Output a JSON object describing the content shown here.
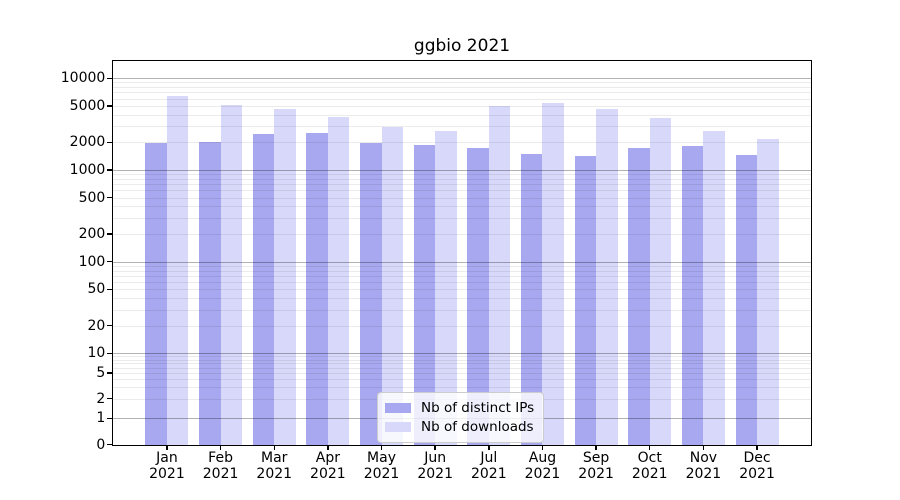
{
  "chart_data": {
    "type": "bar",
    "title": "ggbio 2021",
    "xlabel": "",
    "ylabel": "",
    "yscale": "log-with-zero",
    "grid": true,
    "legend_position": "lower center",
    "year": "2021",
    "categories": [
      "Jan",
      "Feb",
      "Mar",
      "Apr",
      "May",
      "Jun",
      "Jul",
      "Aug",
      "Sep",
      "Oct",
      "Nov",
      "Dec"
    ],
    "series": [
      {
        "name": "Nb of distinct IPs",
        "color": "#a8a8f0",
        "values": [
          1950,
          2040,
          2480,
          2560,
          1990,
          1870,
          1720,
          1510,
          1430,
          1720,
          1830,
          1470
        ]
      },
      {
        "name": "Nb of downloads",
        "color": "#d8d8fa",
        "values": [
          6450,
          5170,
          4580,
          3750,
          2960,
          2680,
          5020,
          5370,
          4580,
          3710,
          2670,
          2150
        ]
      }
    ],
    "y_tick_labels": [
      "0",
      "1",
      "2",
      "5",
      "10",
      "20",
      "50",
      "100",
      "200",
      "500",
      "1000",
      "2000",
      "5000",
      "10000"
    ],
    "ylim": [
      0,
      15500
    ]
  }
}
